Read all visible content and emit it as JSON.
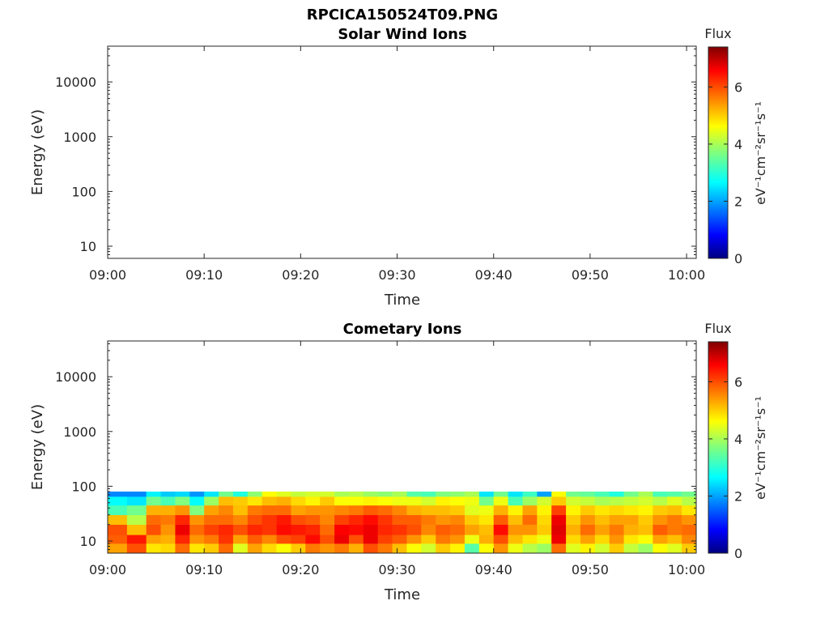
{
  "figure_title": "RPCICA150524T09.PNG",
  "colorbar": {
    "title": "Flux",
    "label": "eV⁻¹cm⁻²sr⁻¹s⁻¹",
    "ticks": [
      "0",
      "2",
      "4",
      "6"
    ],
    "range": [
      0,
      7.4
    ],
    "colormap": "jet"
  },
  "chart_data": [
    {
      "type": "heatmap",
      "title": "Solar Wind Ions",
      "xlabel": "Time",
      "ylabel": "Energy (eV)",
      "x_ticks": [
        "09:00",
        "09:10",
        "09:20",
        "09:30",
        "09:40",
        "09:50",
        "10:00"
      ],
      "y_ticks": [
        "10",
        "100",
        "1000",
        "10000"
      ],
      "xlim": [
        "09:00",
        "10:01"
      ],
      "ylim": [
        6,
        45000
      ],
      "y_scale": "log",
      "cells": []
    },
    {
      "type": "heatmap",
      "title": "Cometary Ions",
      "xlabel": "Time",
      "ylabel": "Energy (eV)",
      "x_ticks": [
        "09:00",
        "09:10",
        "09:20",
        "09:30",
        "09:40",
        "09:50",
        "10:00"
      ],
      "y_ticks": [
        "10",
        "100",
        "1000",
        "10000"
      ],
      "xlim": [
        "09:00",
        "10:01"
      ],
      "ylim": [
        6,
        45000
      ],
      "y_scale": "log",
      "energy_bins": [
        6,
        9,
        13,
        20,
        30,
        45,
        65,
        80
      ],
      "time_bins_min": [
        0,
        2,
        4,
        5.5,
        7,
        8.5,
        10,
        11.5,
        13,
        14.5,
        16,
        17.5,
        19,
        20.5,
        22,
        23.5,
        25,
        26.5,
        28,
        29.5,
        31,
        32.5,
        34,
        35.5,
        37,
        38.5,
        40,
        41.5,
        43,
        44.5,
        46,
        47.5,
        49,
        50.5,
        52,
        53.5,
        55,
        56.5,
        58,
        59.5,
        61
      ],
      "flux": [
        [
          5.3,
          5.8,
          5.9,
          5.1,
          3.3,
          2.8,
          1.9
        ],
        [
          5.9,
          6.3,
          5.1,
          4.1,
          3.6,
          2.6,
          1.9
        ],
        [
          4.8,
          5.3,
          5.9,
          5.7,
          5.2,
          3.6,
          2.7
        ],
        [
          4.9,
          5.2,
          5.4,
          5.6,
          5.2,
          3.3,
          2.4
        ],
        [
          5.7,
          6.2,
          6.6,
          6.2,
          5.4,
          3.7,
          2.5
        ],
        [
          4.8,
          5.4,
          5.7,
          5.4,
          3.7,
          2.8,
          2.0
        ],
        [
          5.0,
          5.6,
          6.0,
          5.7,
          5.3,
          3.9,
          2.6
        ],
        [
          5.7,
          6.1,
          6.2,
          5.7,
          5.5,
          5.1,
          3.6
        ],
        [
          4.4,
          5.3,
          5.9,
          5.5,
          5.1,
          5.0,
          3.0
        ],
        [
          5.3,
          5.8,
          6.2,
          5.9,
          5.6,
          4.8,
          3.8
        ],
        [
          4.9,
          5.5,
          6.1,
          6.1,
          5.7,
          5.1,
          4.6
        ],
        [
          4.6,
          5.9,
          6.4,
          6.3,
          5.7,
          5.2,
          4.4
        ],
        [
          5.0,
          6.0,
          6.3,
          5.9,
          5.3,
          4.9,
          4.2
        ],
        [
          5.6,
          6.4,
          6.2,
          5.8,
          5.4,
          4.7,
          4.3
        ],
        [
          5.4,
          5.9,
          5.7,
          5.5,
          5.4,
          5.0,
          4.3
        ],
        [
          5.6,
          6.6,
          6.5,
          6.0,
          5.5,
          4.6,
          4.0
        ],
        [
          5.2,
          5.9,
          6.4,
          6.2,
          5.6,
          4.6,
          4.1
        ],
        [
          5.9,
          6.6,
          6.6,
          6.4,
          5.8,
          4.7,
          3.9
        ],
        [
          5.6,
          6.0,
          6.2,
          6.1,
          5.7,
          4.6,
          3.8
        ],
        [
          5.1,
          5.8,
          6.1,
          5.8,
          5.5,
          4.5,
          4.0
        ],
        [
          4.6,
          5.4,
          5.9,
          5.8,
          5.2,
          4.5,
          3.4
        ],
        [
          4.3,
          5.0,
          5.5,
          5.6,
          5.1,
          4.3,
          3.3
        ],
        [
          5.0,
          5.6,
          5.8,
          5.4,
          5.1,
          4.7,
          3.7
        ],
        [
          4.7,
          5.4,
          5.7,
          5.5,
          5.0,
          4.6,
          3.8
        ],
        [
          3.4,
          4.5,
          5.3,
          5.0,
          4.4,
          4.5,
          4.0
        ],
        [
          4.6,
          5.2,
          5.1,
          4.8,
          4.5,
          3.6,
          2.6
        ],
        [
          5.4,
          5.9,
          6.4,
          5.8,
          5.2,
          4.5,
          3.6
        ],
        [
          4.5,
          5.1,
          5.4,
          5.1,
          4.7,
          3.3,
          2.6
        ],
        [
          4.1,
          4.8,
          5.4,
          5.7,
          5.3,
          3.9,
          3.2
        ],
        [
          3.9,
          4.5,
          5.0,
          4.9,
          4.7,
          4.3,
          2.1
        ],
        [
          5.7,
          6.6,
          6.7,
          6.6,
          6.0,
          5.0,
          4.6
        ],
        [
          4.4,
          4.9,
          5.2,
          5.0,
          4.7,
          4.3,
          3.6
        ],
        [
          4.7,
          5.3,
          5.7,
          5.4,
          5.0,
          4.2,
          3.5
        ],
        [
          4.3,
          4.9,
          5.3,
          5.1,
          4.8,
          4.0,
          3.3
        ],
        [
          5.0,
          5.4,
          5.6,
          5.3,
          4.9,
          4.1,
          3.0
        ],
        [
          4.2,
          4.8,
          5.2,
          5.3,
          4.8,
          4.2,
          3.6
        ],
        [
          3.9,
          4.6,
          5.1,
          5.0,
          4.7,
          4.3,
          4.0
        ],
        [
          4.6,
          5.3,
          5.8,
          5.4,
          5.0,
          4.1,
          3.3
        ],
        [
          4.4,
          5.1,
          5.6,
          5.6,
          5.1,
          4.4,
          3.4
        ],
        [
          5.0,
          5.5,
          5.7,
          5.4,
          4.8,
          4.1,
          3.6
        ]
      ]
    }
  ]
}
